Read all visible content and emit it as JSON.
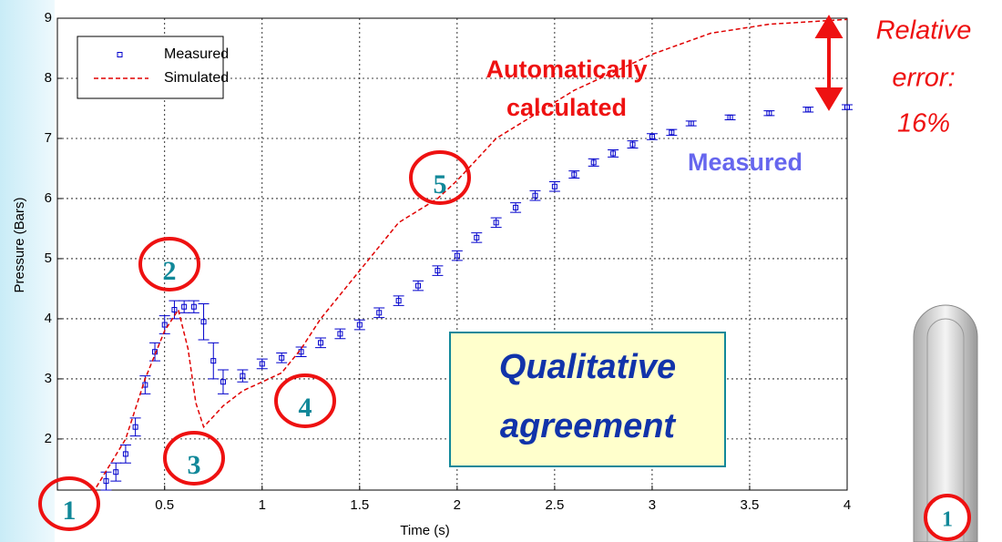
{
  "chart_data": {
    "type": "line",
    "x_label": "Time (s)",
    "y_label": "Pressure (Bars)",
    "xlim": [
      -0.05,
      4
    ],
    "ylim": [
      1.15,
      9
    ],
    "xticks": [
      0.5,
      1,
      1.5,
      2,
      2.5,
      3,
      3.5,
      4
    ],
    "yticks": [
      2,
      3,
      4,
      5,
      6,
      7,
      8,
      9
    ],
    "grid": true,
    "legend": "upper-left",
    "series": [
      {
        "name": "Measured",
        "color": "#0000cc",
        "marker": "square",
        "linestyle": "none",
        "x": [
          0.2,
          0.25,
          0.3,
          0.35,
          0.4,
          0.45,
          0.5,
          0.55,
          0.6,
          0.65,
          0.7,
          0.75,
          0.8,
          0.9,
          1.0,
          1.1,
          1.2,
          1.3,
          1.4,
          1.5,
          1.6,
          1.7,
          1.8,
          1.9,
          2.0,
          2.1,
          2.2,
          2.3,
          2.4,
          2.5,
          2.6,
          2.7,
          2.8,
          2.9,
          3.0,
          3.1,
          3.2,
          3.4,
          3.6,
          3.8,
          4.0
        ],
        "values": [
          1.3,
          1.45,
          1.75,
          2.2,
          2.9,
          3.45,
          3.9,
          4.15,
          4.2,
          4.2,
          3.95,
          3.3,
          2.95,
          3.05,
          3.25,
          3.35,
          3.45,
          3.6,
          3.75,
          3.9,
          4.1,
          4.3,
          4.55,
          4.8,
          5.05,
          5.35,
          5.6,
          5.85,
          6.05,
          6.2,
          6.4,
          6.6,
          6.75,
          6.9,
          7.03,
          7.1,
          7.25,
          7.35,
          7.42,
          7.48,
          7.52
        ],
        "errors": [
          0.15,
          0.15,
          0.15,
          0.15,
          0.15,
          0.15,
          0.15,
          0.15,
          0.1,
          0.1,
          0.3,
          0.3,
          0.2,
          0.1,
          0.08,
          0.08,
          0.08,
          0.08,
          0.08,
          0.08,
          0.08,
          0.08,
          0.08,
          0.08,
          0.08,
          0.08,
          0.08,
          0.08,
          0.08,
          0.08,
          0.06,
          0.06,
          0.06,
          0.06,
          0.05,
          0.05,
          0.04,
          0.04,
          0.04,
          0.04,
          0.04
        ]
      },
      {
        "name": "Simulated",
        "color": "#e00000",
        "marker": "none",
        "linestyle": "dashed",
        "x": [
          0.15,
          0.3,
          0.4,
          0.5,
          0.57,
          0.62,
          0.66,
          0.7,
          0.8,
          0.9,
          1.0,
          1.1,
          1.2,
          1.3,
          1.5,
          1.7,
          1.9,
          2.0,
          2.2,
          2.6,
          3.0,
          3.3,
          3.6,
          4.0
        ],
        "values": [
          1.2,
          2.0,
          3.0,
          3.8,
          4.15,
          3.5,
          2.6,
          2.2,
          2.55,
          2.8,
          2.95,
          3.1,
          3.5,
          4.0,
          4.8,
          5.6,
          6.0,
          6.3,
          7.0,
          7.8,
          8.4,
          8.75,
          8.9,
          8.98
        ]
      }
    ],
    "annotations": [
      {
        "lines": [
          "Automatically",
          "calculated"
        ]
      },
      {
        "lines": [
          "Relative",
          "error:",
          "16%"
        ]
      },
      {
        "lines": [
          "Measured"
        ]
      },
      {
        "lines": [
          "Qualitative",
          "agreement"
        ]
      }
    ],
    "markers": [
      "1",
      "2",
      "3",
      "4",
      "5"
    ],
    "icon_marker": "1"
  }
}
